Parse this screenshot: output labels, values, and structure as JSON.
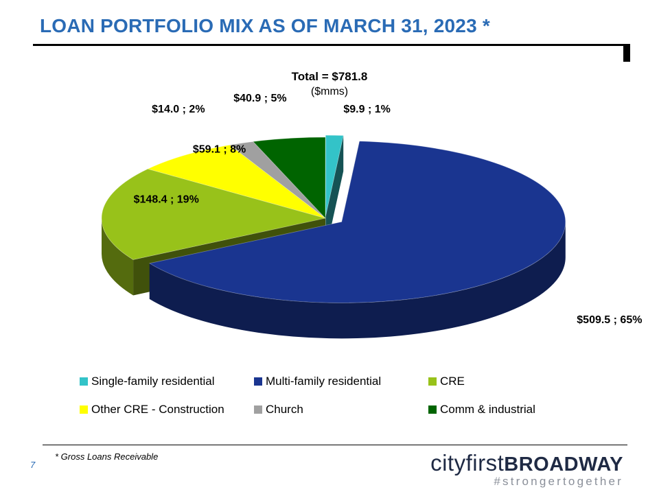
{
  "page": {
    "title": "LOAN PORTFOLIO MIX AS OF MARCH 31, 2023 *",
    "footnote": "* Gross Loans Receivable",
    "page_number": "7"
  },
  "brand": {
    "name_part1": "cityfirst",
    "name_part2": "BROADWAY",
    "tagline": "#strongertogether"
  },
  "chart_data": {
    "type": "pie",
    "title": "Total = $781.8",
    "subtitle": "($mms)",
    "unit": "$mms",
    "total": 781.8,
    "slices": [
      {
        "name": "Single-family residential",
        "value": 9.9,
        "percent": 1,
        "label": "$9.9 ; 1%",
        "color": "#33c3c8",
        "exploded": true
      },
      {
        "name": "Multi-family residential",
        "value": 509.5,
        "percent": 65,
        "label": "$509.5 ; 65%",
        "color": "#1a3590",
        "exploded": true
      },
      {
        "name": "CRE",
        "value": 148.4,
        "percent": 19,
        "label": "$148.4 ; 19%",
        "color": "#98c21a",
        "exploded": false
      },
      {
        "name": "Other CRE - Construction",
        "value": 59.1,
        "percent": 8,
        "label": "$59.1 ; 8%",
        "color": "#ffff00",
        "exploded": false
      },
      {
        "name": "Church",
        "value": 14.0,
        "percent": 2,
        "label": "$14.0 ; 2%",
        "color": "#a0a0a0",
        "exploded": false
      },
      {
        "name": "Comm & industrial",
        "value": 40.9,
        "percent": 5,
        "label": "$40.9 ; 5%",
        "color": "#006400",
        "exploded": false
      }
    ],
    "legend": {
      "placement": "bottom",
      "entries": [
        [
          "Single-family residential",
          "Multi-family residential",
          "CRE"
        ],
        [
          "Other CRE - Construction",
          "Church",
          "Comm & industrial"
        ]
      ]
    }
  }
}
